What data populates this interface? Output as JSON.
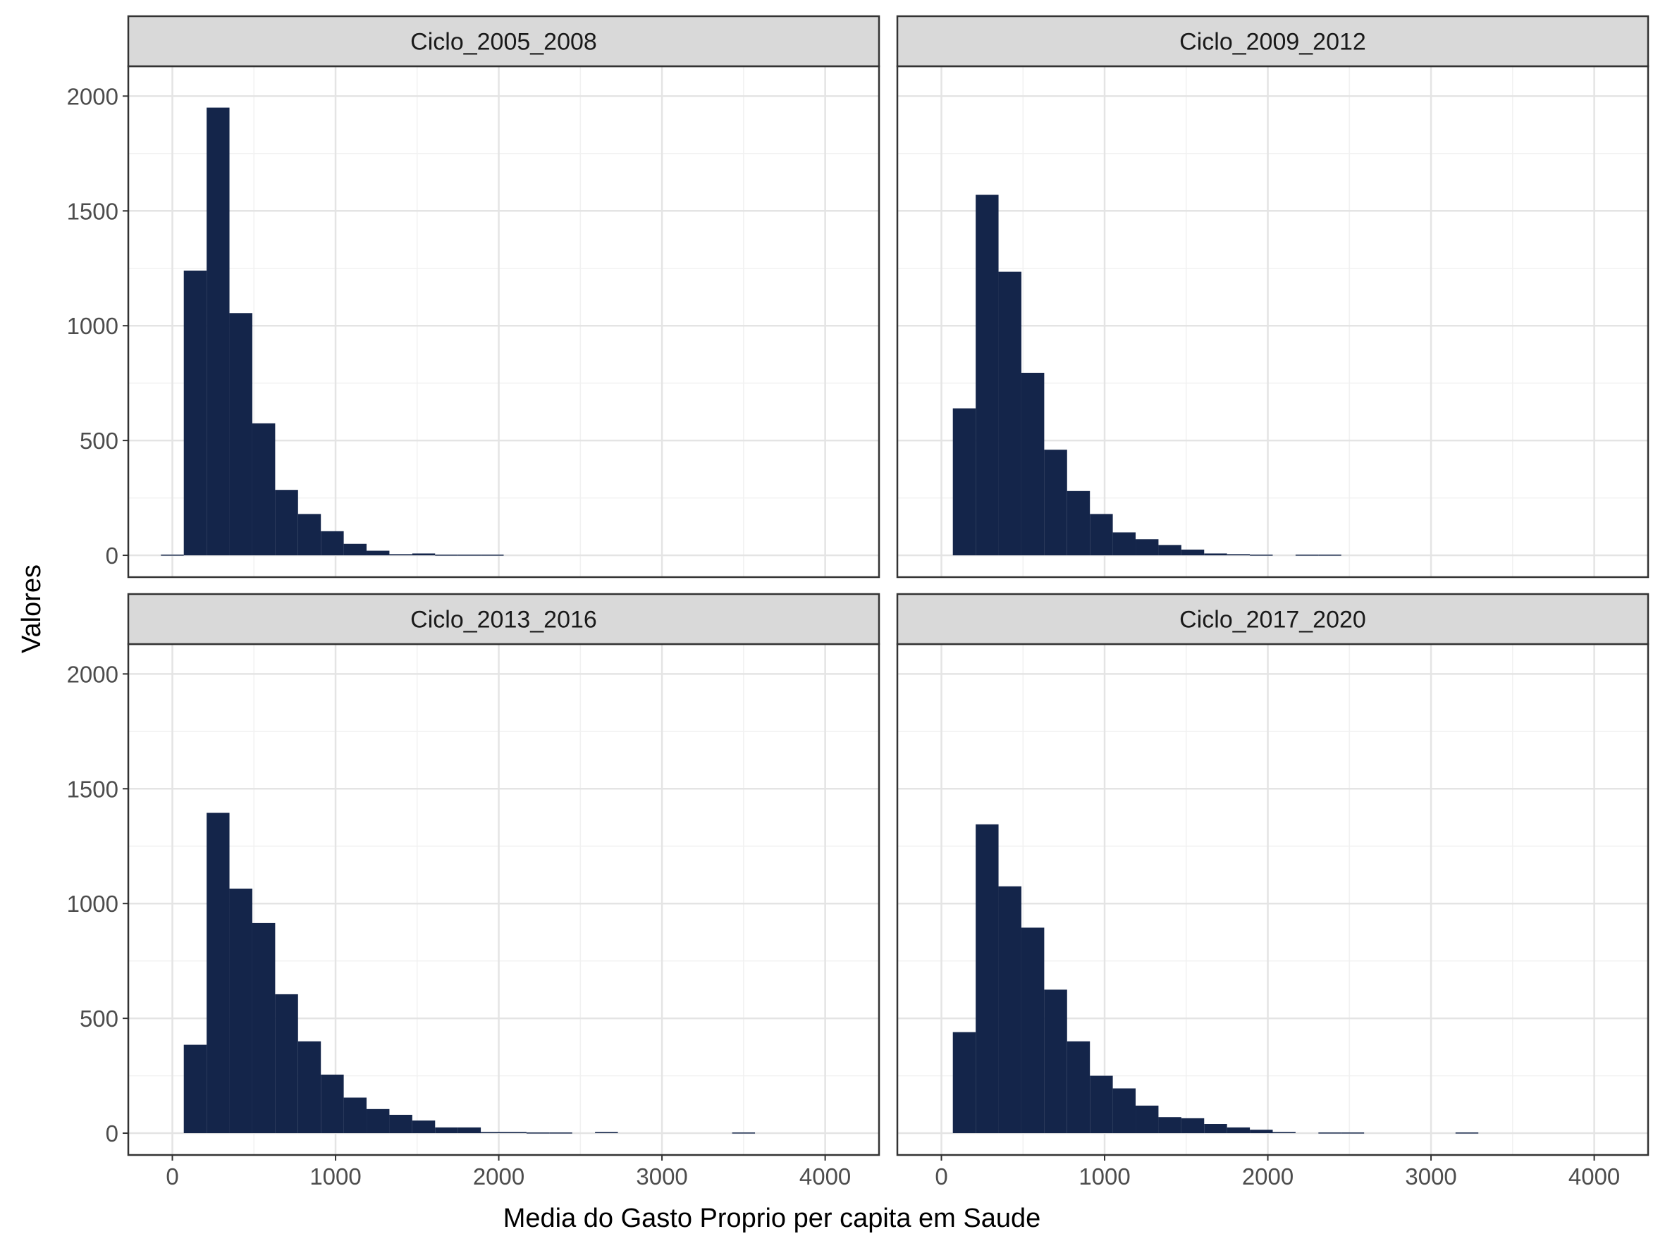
{
  "chart_data": {
    "type": "bar",
    "xlabel": "Media do Gasto Proprio per capita em Saude",
    "ylabel": "Valores",
    "xlim": [
      -270,
      4330
    ],
    "ylim": [
      -95,
      2130
    ],
    "x_ticks": [
      0,
      1000,
      2000,
      3000,
      4000
    ],
    "y_ticks": [
      0,
      500,
      1000,
      1500,
      2000
    ],
    "x_minor": [
      500,
      1500,
      2500,
      3500
    ],
    "y_minor": [
      250,
      750,
      1250,
      1750
    ],
    "bar_color": "#14254a",
    "bin_width": 140,
    "grid": true,
    "panels": [
      {
        "label": "Ciclo_2005_2008",
        "bins": [
          {
            "x0": -70,
            "x1": 70,
            "y": 3
          },
          {
            "x0": 70,
            "x1": 210,
            "y": 1240
          },
          {
            "x0": 210,
            "x1": 350,
            "y": 1950
          },
          {
            "x0": 350,
            "x1": 490,
            "y": 1055
          },
          {
            "x0": 490,
            "x1": 630,
            "y": 575
          },
          {
            "x0": 630,
            "x1": 770,
            "y": 285
          },
          {
            "x0": 770,
            "x1": 910,
            "y": 180
          },
          {
            "x0": 910,
            "x1": 1050,
            "y": 105
          },
          {
            "x0": 1050,
            "x1": 1190,
            "y": 50
          },
          {
            "x0": 1190,
            "x1": 1330,
            "y": 20
          },
          {
            "x0": 1330,
            "x1": 1470,
            "y": 5
          },
          {
            "x0": 1470,
            "x1": 1610,
            "y": 8
          },
          {
            "x0": 1610,
            "x1": 1750,
            "y": 3
          },
          {
            "x0": 1750,
            "x1": 1890,
            "y": 3
          },
          {
            "x0": 1890,
            "x1": 2030,
            "y": 3
          }
        ]
      },
      {
        "label": "Ciclo_2009_2012",
        "bins": [
          {
            "x0": 70,
            "x1": 210,
            "y": 640
          },
          {
            "x0": 210,
            "x1": 350,
            "y": 1570
          },
          {
            "x0": 350,
            "x1": 490,
            "y": 1235
          },
          {
            "x0": 490,
            "x1": 630,
            "y": 795
          },
          {
            "x0": 630,
            "x1": 770,
            "y": 460
          },
          {
            "x0": 770,
            "x1": 910,
            "y": 280
          },
          {
            "x0": 910,
            "x1": 1050,
            "y": 180
          },
          {
            "x0": 1050,
            "x1": 1190,
            "y": 100
          },
          {
            "x0": 1190,
            "x1": 1330,
            "y": 70
          },
          {
            "x0": 1330,
            "x1": 1470,
            "y": 45
          },
          {
            "x0": 1470,
            "x1": 1610,
            "y": 25
          },
          {
            "x0": 1610,
            "x1": 1750,
            "y": 8
          },
          {
            "x0": 1750,
            "x1": 1890,
            "y": 5
          },
          {
            "x0": 1890,
            "x1": 2030,
            "y": 3
          },
          {
            "x0": 2170,
            "x1": 2310,
            "y": 3
          },
          {
            "x0": 2310,
            "x1": 2450,
            "y": 3
          }
        ]
      },
      {
        "label": "Ciclo_2013_2016",
        "bins": [
          {
            "x0": 70,
            "x1": 210,
            "y": 385
          },
          {
            "x0": 210,
            "x1": 350,
            "y": 1395
          },
          {
            "x0": 350,
            "x1": 490,
            "y": 1065
          },
          {
            "x0": 490,
            "x1": 630,
            "y": 915
          },
          {
            "x0": 630,
            "x1": 770,
            "y": 605
          },
          {
            "x0": 770,
            "x1": 910,
            "y": 400
          },
          {
            "x0": 910,
            "x1": 1050,
            "y": 255
          },
          {
            "x0": 1050,
            "x1": 1190,
            "y": 155
          },
          {
            "x0": 1190,
            "x1": 1330,
            "y": 105
          },
          {
            "x0": 1330,
            "x1": 1470,
            "y": 80
          },
          {
            "x0": 1470,
            "x1": 1610,
            "y": 55
          },
          {
            "x0": 1610,
            "x1": 1750,
            "y": 25
          },
          {
            "x0": 1750,
            "x1": 1890,
            "y": 25
          },
          {
            "x0": 1890,
            "x1": 2030,
            "y": 5
          },
          {
            "x0": 2030,
            "x1": 2170,
            "y": 5
          },
          {
            "x0": 2170,
            "x1": 2310,
            "y": 3
          },
          {
            "x0": 2310,
            "x1": 2450,
            "y": 3
          },
          {
            "x0": 2590,
            "x1": 2730,
            "y": 5
          },
          {
            "x0": 3430,
            "x1": 3570,
            "y": 3
          }
        ]
      },
      {
        "label": "Ciclo_2017_2020",
        "bins": [
          {
            "x0": 70,
            "x1": 210,
            "y": 440
          },
          {
            "x0": 210,
            "x1": 350,
            "y": 1345
          },
          {
            "x0": 350,
            "x1": 490,
            "y": 1075
          },
          {
            "x0": 490,
            "x1": 630,
            "y": 895
          },
          {
            "x0": 630,
            "x1": 770,
            "y": 625
          },
          {
            "x0": 770,
            "x1": 910,
            "y": 400
          },
          {
            "x0": 910,
            "x1": 1050,
            "y": 250
          },
          {
            "x0": 1050,
            "x1": 1190,
            "y": 195
          },
          {
            "x0": 1190,
            "x1": 1330,
            "y": 120
          },
          {
            "x0": 1330,
            "x1": 1470,
            "y": 70
          },
          {
            "x0": 1470,
            "x1": 1610,
            "y": 65
          },
          {
            "x0": 1610,
            "x1": 1750,
            "y": 40
          },
          {
            "x0": 1750,
            "x1": 1890,
            "y": 25
          },
          {
            "x0": 1890,
            "x1": 2030,
            "y": 15
          },
          {
            "x0": 2030,
            "x1": 2170,
            "y": 5
          },
          {
            "x0": 2310,
            "x1": 2450,
            "y": 3
          },
          {
            "x0": 2450,
            "x1": 2590,
            "y": 3
          },
          {
            "x0": 3150,
            "x1": 3290,
            "y": 3
          }
        ]
      }
    ]
  }
}
